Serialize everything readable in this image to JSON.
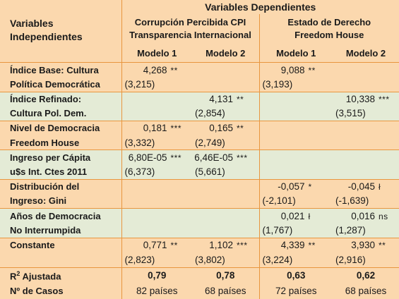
{
  "header": {
    "var_title_line1": "Variables",
    "var_title_line2": "Independientes",
    "dep_title": "Variables Dependientes",
    "group1_line1": "Corrupción Percibida CPI",
    "group1_line2": "Transparencia Internacional",
    "group2_line1": "Estado de Derecho",
    "group2_line2": "Freedom House",
    "models": [
      "Modelo 1",
      "Modelo 2",
      "Modelo 1",
      "Modelo 2"
    ]
  },
  "rows": [
    {
      "line1": "Índice Base: Cultura",
      "line2": "Política Democrática",
      "cells": [
        {
          "v": "4,268",
          "s": "**",
          "se": "(3,215)"
        },
        {
          "v": "",
          "s": "",
          "se": ""
        },
        {
          "v": "9,088",
          "s": "**",
          "se": "(3,193)"
        },
        {
          "v": "",
          "s": "",
          "se": ""
        }
      ]
    },
    {
      "line1": "Índice Refinado:",
      "line2": "Cultura Pol. Dem.",
      "cells": [
        {
          "v": "",
          "s": "",
          "se": ""
        },
        {
          "v": "4,131",
          "s": "**",
          "se": "(2,854)"
        },
        {
          "v": "",
          "s": "",
          "se": ""
        },
        {
          "v": "10,338",
          "s": "***",
          "se": "(3,515)"
        }
      ]
    },
    {
      "line1": "Nivel de Democracia",
      "line2": "Freedom House",
      "cells": [
        {
          "v": "0,181",
          "s": "***",
          "se": "(3,332)"
        },
        {
          "v": "0,165",
          "s": "**",
          "se": "(2,749)"
        },
        {
          "v": "",
          "s": "",
          "se": ""
        },
        {
          "v": "",
          "s": "",
          "se": ""
        }
      ]
    },
    {
      "line1": "Ingreso per Cápita",
      "line2": "u$s Int. Ctes 2011",
      "cells": [
        {
          "v": "6,80E-05",
          "s": "***",
          "se": "(6,373)"
        },
        {
          "v": "6,46E-05",
          "s": "***",
          "se": "(5,661)"
        },
        {
          "v": "",
          "s": "",
          "se": ""
        },
        {
          "v": "",
          "s": "",
          "se": ""
        }
      ]
    },
    {
      "line1": "Distribución del",
      "line2": "Ingreso: Gini",
      "cells": [
        {
          "v": "",
          "s": "",
          "se": ""
        },
        {
          "v": "",
          "s": "",
          "se": ""
        },
        {
          "v": "-0,057",
          "s": "*",
          "se": "(-2,101)"
        },
        {
          "v": "-0,045",
          "s": "ł",
          "se": "(-1,639)"
        }
      ]
    },
    {
      "line1": "Años de Democracia",
      "line2": "No Interrumpida",
      "cells": [
        {
          "v": "",
          "s": "",
          "se": ""
        },
        {
          "v": "",
          "s": "",
          "se": ""
        },
        {
          "v": "0,021",
          "s": "ł",
          "se": "(1,767)"
        },
        {
          "v": "0,016",
          "s": "ns",
          "se": "(1,287)"
        }
      ]
    },
    {
      "line1": "Constante",
      "line2": "",
      "cells": [
        {
          "v": "0,771",
          "s": "**",
          "se": "(2,823)"
        },
        {
          "v": "1,102",
          "s": "***",
          "se": "(3,802)"
        },
        {
          "v": "4,339",
          "s": "**",
          "se": "(3,224)"
        },
        {
          "v": "3,930",
          "s": "**",
          "se": "(2,916)"
        }
      ]
    }
  ],
  "r2": {
    "label_pre": "R",
    "label_sup": "2",
    "label_post": " Ajustada",
    "values": [
      "0,79",
      "0,78",
      "0,63",
      "0,62"
    ]
  },
  "cases": {
    "label": "Nº de Casos",
    "values": [
      "82 países",
      "68 países",
      "72 países",
      "68 países"
    ]
  },
  "colors": {
    "peach": "#fbd8ae",
    "green": "#e4ebd6",
    "border": "#e8963f"
  }
}
